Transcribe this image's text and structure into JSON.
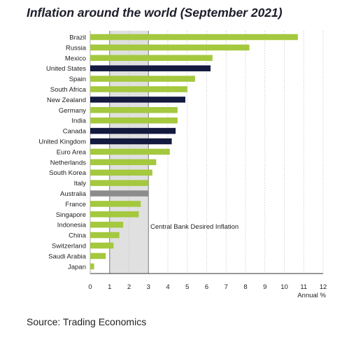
{
  "title": "Inflation around the world (September 2021)",
  "source": "Source: Trading Economics",
  "colors": {
    "default": "#a4c83e",
    "central_bank_countries": "#14193f",
    "australia": "#8c8c8c",
    "band": "#e0e0e0"
  },
  "chart_data": {
    "type": "bar",
    "orientation": "horizontal",
    "title": "Inflation around the world (September 2021)",
    "xlabel": "Annual %",
    "xlim": [
      0,
      12
    ],
    "xticks": [
      "0",
      "1",
      "2",
      "3",
      "4",
      "5",
      "6",
      "7",
      "8",
      "9",
      "10",
      "11",
      "12"
    ],
    "grid": "vertical",
    "band": {
      "from": 1,
      "to": 3,
      "label": "Central Bank Desired Inflation"
    },
    "categories": [
      "Brazil",
      "Russia",
      "Mexico",
      "United States",
      "Spain",
      "South Africa",
      "New Zealand",
      "Germany",
      "India",
      "Canada",
      "United Kingdom",
      "Euro Area",
      "Netherlands",
      "South Korea",
      "Italy",
      "Australia",
      "France",
      "Singapore",
      "Indonesia",
      "China",
      "Switzerland",
      "Saudi Arabia",
      "Japan"
    ],
    "values": [
      10.7,
      8.2,
      6.3,
      6.2,
      5.4,
      5.0,
      4.9,
      4.5,
      4.5,
      4.4,
      4.2,
      4.1,
      3.4,
      3.2,
      3.0,
      3.0,
      2.6,
      2.5,
      1.7,
      1.5,
      1.2,
      0.8,
      0.2
    ],
    "highlight_dark": [
      "United States",
      "New Zealand",
      "Canada",
      "United Kingdom"
    ],
    "highlight_grey": [
      "Australia"
    ]
  }
}
